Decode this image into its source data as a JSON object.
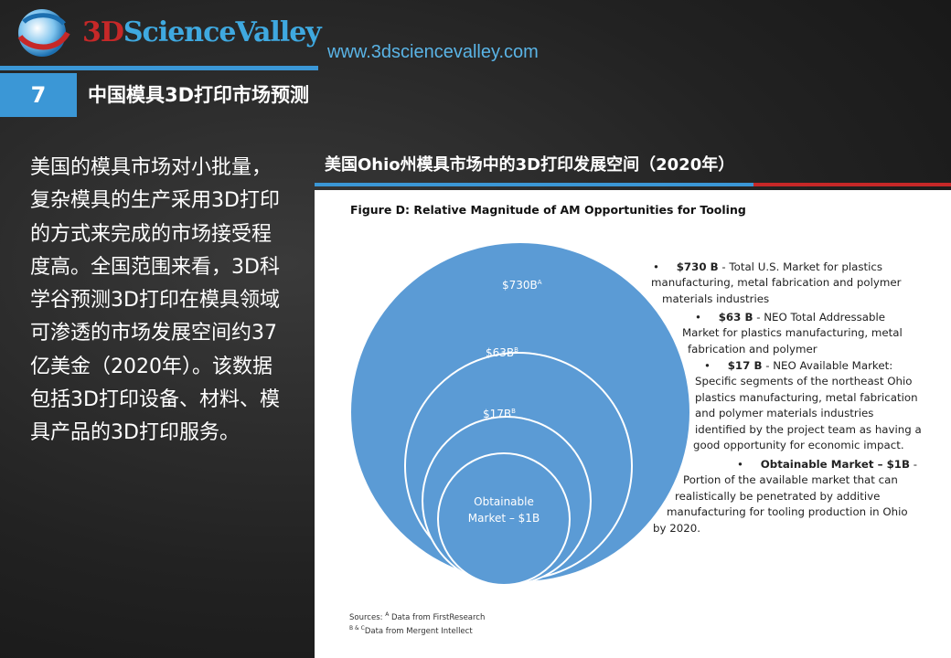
{
  "brand": {
    "logo_prefix": "3D",
    "logo_rest": "ScienceValley",
    "url": "www.3dsciencevalley.com",
    "colors": {
      "accent_blue": "#3b97d6",
      "accent_red": "#c62828",
      "bubble_blue": "#5b9bd5"
    }
  },
  "slide": {
    "number": "7",
    "title": "中国模具3D打印市场预测"
  },
  "left_text": "美国的模具市场对小批量，复杂模具的生产采用3D打印的方式来完成的市场接受程度高。全国范围来看，3D科学谷预测3D打印在模具领域可渗透的市场发展空间约37亿美金（2020年）。该数据包括3D打印设备、材料、模具产品的3D打印服务。",
  "section_title": "美国Ohio州模具市场中的3D打印发展空间（2020年）",
  "figure": {
    "title": "Figure D: Relative Magnitude of AM Opportunities for Tooling",
    "bubbles": [
      {
        "label": "$730B",
        "sup": "A"
      },
      {
        "label": "$63B",
        "sup": "B"
      },
      {
        "label": "$17B",
        "sup": "B"
      },
      {
        "label_line1": "Obtainable",
        "label_line2": "Market – $1B"
      }
    ],
    "descriptions": [
      {
        "bold": "$730 B",
        "lines": [
          "- Total U.S. Market for plastics",
          "manufacturing, metal fabrication and polymer",
          "materials industries"
        ]
      },
      {
        "bold": "$63 B",
        "lines": [
          "- NEO Total Addressable",
          "Market for plastics manufacturing, metal",
          "fabrication and polymer"
        ]
      },
      {
        "bold": "$17 B",
        "lines": [
          "- NEO Available Market:",
          "Specific segments of the northeast Ohio",
          "plastics manufacturing, metal fabrication",
          "and polymer materials industries",
          "identified by the project team as having a",
          "good opportunity for economic impact."
        ]
      },
      {
        "bold": "Obtainable Market – $1B",
        "lines": [
          "-",
          "Portion of the available market that can",
          "realistically be penetrated by additive",
          "manufacturing for tooling production in Ohio",
          "by 2020."
        ]
      }
    ],
    "sources": {
      "label": "Sources:",
      "line1_sup": "A",
      "line1": "Data from FirstResearch",
      "line2_sup": "B & C",
      "line2": "Data from Mergent Intellect"
    }
  }
}
